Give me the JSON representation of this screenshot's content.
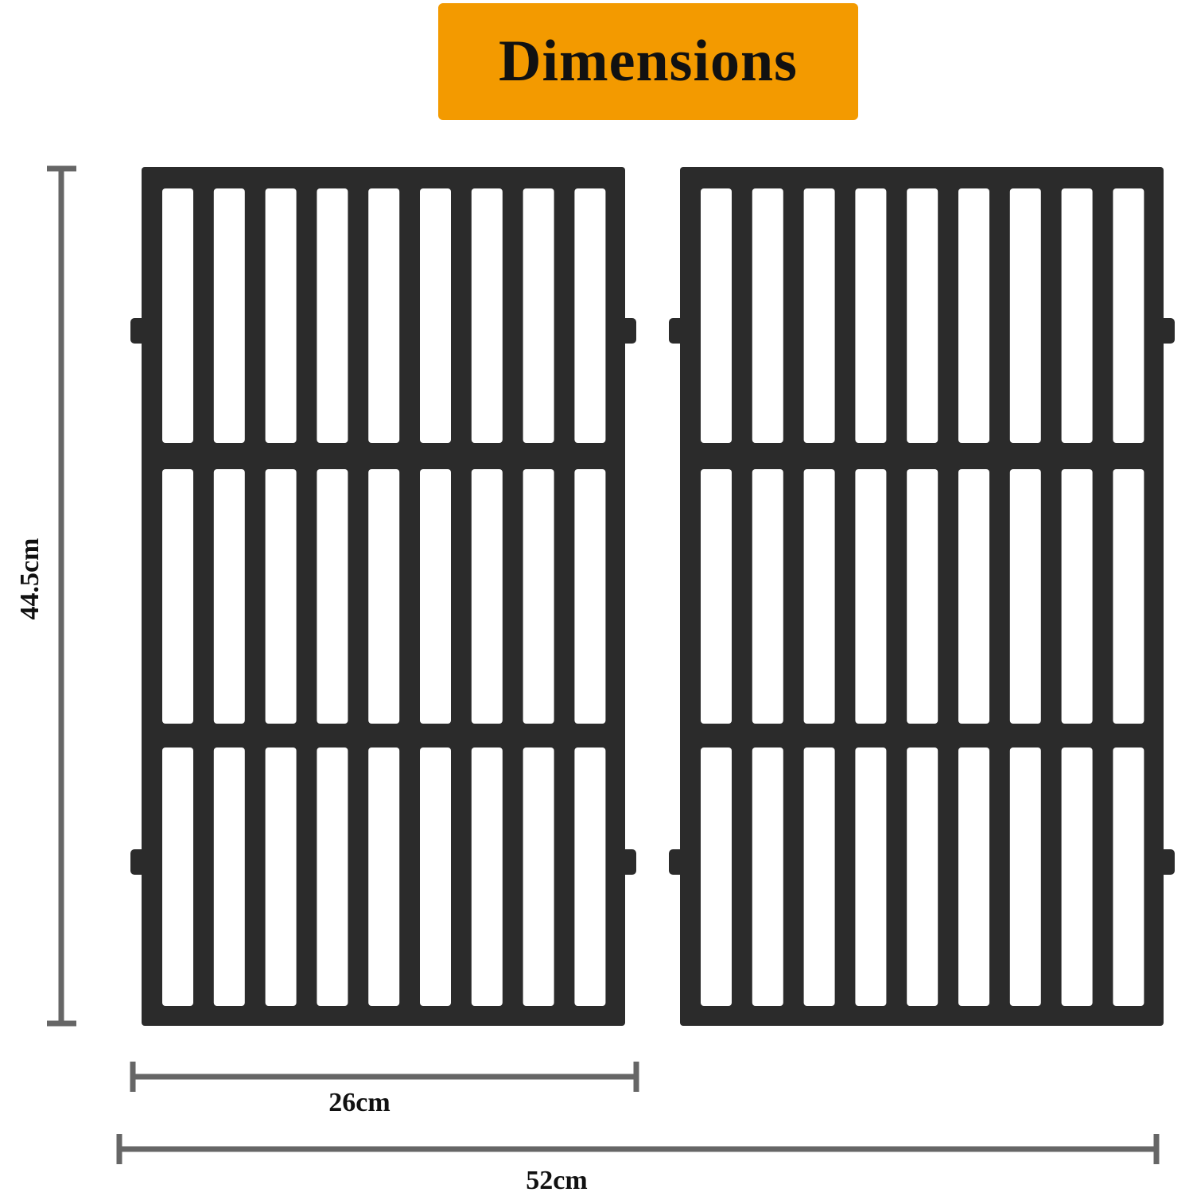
{
  "title": "Dimensions",
  "colors": {
    "title_background": "#F39A00",
    "grate": "#2b2b2b",
    "dimension_line": "#666666"
  },
  "product": {
    "grate_count": 2,
    "slot_columns": 9,
    "slot_rows": 3
  },
  "dimensions": {
    "height_label": "44.5cm",
    "single_width_label": "26cm",
    "total_width_label": "52cm"
  }
}
